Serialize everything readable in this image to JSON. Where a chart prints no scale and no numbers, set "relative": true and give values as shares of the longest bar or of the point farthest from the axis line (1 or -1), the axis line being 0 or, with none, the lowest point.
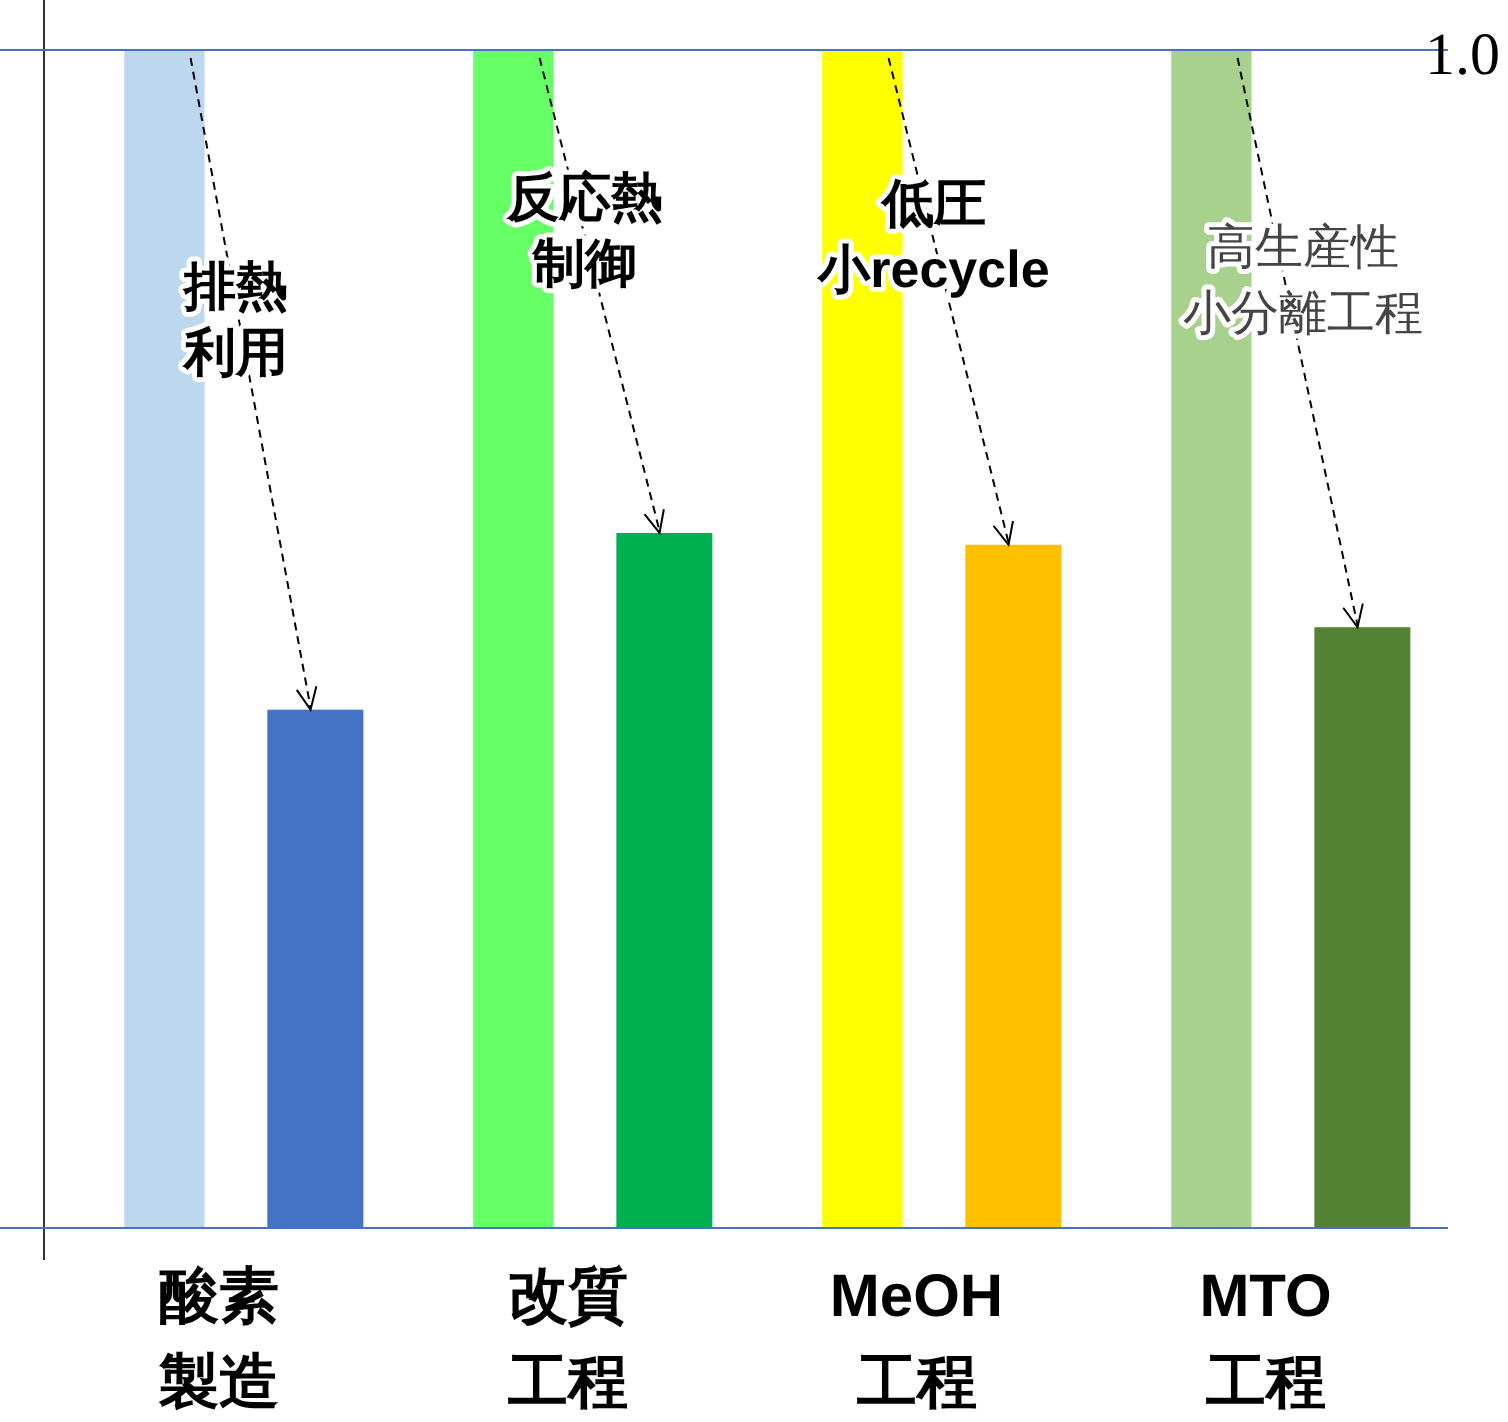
{
  "chart_data": {
    "type": "bar",
    "relative": true,
    "categories": [
      "酸素製造",
      "改質工程",
      "MeOH工程",
      "MTO工程"
    ],
    "series": [
      {
        "colors": [
          "#bdd7ee",
          "#66ff66",
          "#ffff00",
          "#a9d18e"
        ],
        "values": [
          1,
          1,
          1,
          1
        ]
      },
      {
        "colors": [
          "#4472c4",
          "#00b050",
          "#ffc000",
          "#548235"
        ],
        "values": [
          0.44,
          0.59,
          0.58,
          0.51
        ]
      }
    ],
    "ref_lines": [
      {
        "axis": "y",
        "value": 1,
        "label": "1.0",
        "color": "#4472c4"
      }
    ],
    "annotations": [
      "排熱",
      "利用",
      "反応熱",
      "制御",
      "低圧",
      "小recycle",
      "高生産性",
      "小分離工程"
    ]
  }
}
